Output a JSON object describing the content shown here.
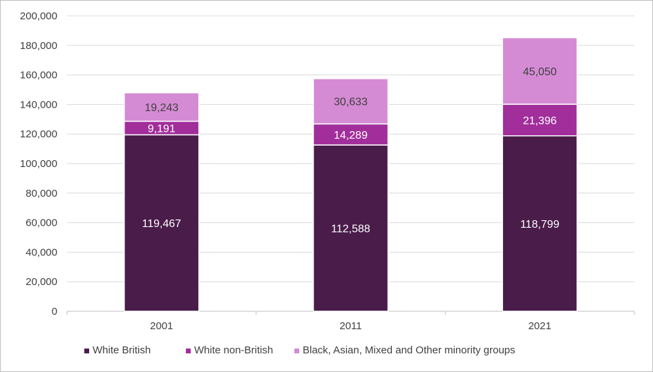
{
  "chart_data": {
    "type": "bar",
    "stacked": true,
    "categories": [
      "2001",
      "2011",
      "2021"
    ],
    "series": [
      {
        "name": "White British",
        "values": [
          119467,
          112588,
          118799
        ],
        "color": "#4a1c4a",
        "label_color": "#ffffff"
      },
      {
        "name": "White non-British",
        "values": [
          9191,
          14289,
          21396
        ],
        "color": "#a12e9a",
        "label_color": "#ffffff"
      },
      {
        "name": "Black, Asian, Mixed and Other minority groups",
        "values": [
          19243,
          30633,
          45050
        ],
        "color": "#d48bd4",
        "label_color": "#404040"
      }
    ],
    "data_labels": [
      [
        "119,467",
        "112,588",
        "118,799"
      ],
      [
        "9,191",
        "14,289",
        "21,396"
      ],
      [
        "19,243",
        "30,633",
        "45,050"
      ]
    ],
    "y_ticks": [
      "0",
      "20,000",
      "40,000",
      "60,000",
      "80,000",
      "100,000",
      "120,000",
      "140,000",
      "160,000",
      "180,000",
      "200,000"
    ],
    "ylim": [
      0,
      200000
    ],
    "y_step": 20000,
    "grid": true,
    "legend_position": "bottom",
    "title": "",
    "xlabel": "",
    "ylabel": ""
  }
}
